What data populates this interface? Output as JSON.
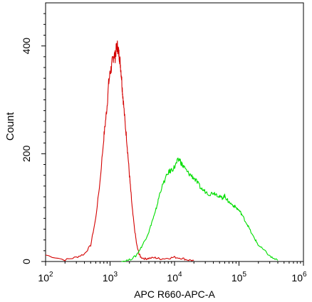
{
  "chart_data": {
    "type": "line",
    "title": "",
    "xlabel": "APC R660-APC-A",
    "ylabel": "Count",
    "xscale": "log",
    "xlim": [
      100,
      1000000
    ],
    "ylim": [
      0,
      480
    ],
    "grid": false,
    "legend": "none",
    "x_ticks": [
      {
        "value": 100,
        "base": "10",
        "exp": "2"
      },
      {
        "value": 1000,
        "base": "10",
        "exp": "3"
      },
      {
        "value": 10000,
        "base": "10",
        "exp": "4"
      },
      {
        "value": 100000,
        "base": "10",
        "exp": "5"
      },
      {
        "value": 1000000,
        "base": "10",
        "exp": "6"
      }
    ],
    "y_ticks": [
      {
        "value": 0,
        "label": "0"
      },
      {
        "value": 200,
        "label": "200"
      },
      {
        "value": 400,
        "label": "400"
      }
    ],
    "series": [
      {
        "color": "#d40000",
        "points": [
          [
            100,
            12
          ],
          [
            200,
            3
          ],
          [
            300,
            8
          ],
          [
            400,
            14
          ],
          [
            500,
            30
          ],
          [
            600,
            80
          ],
          [
            700,
            150
          ],
          [
            800,
            230
          ],
          [
            850,
            260
          ],
          [
            900,
            290
          ],
          [
            950,
            330
          ],
          [
            1000,
            350
          ],
          [
            1050,
            360
          ],
          [
            1100,
            375
          ],
          [
            1150,
            385
          ],
          [
            1200,
            380
          ],
          [
            1250,
            395
          ],
          [
            1300,
            400
          ],
          [
            1350,
            390
          ],
          [
            1400,
            380
          ],
          [
            1450,
            365
          ],
          [
            1500,
            345
          ],
          [
            1550,
            320
          ],
          [
            1600,
            300
          ],
          [
            1700,
            260
          ],
          [
            1800,
            230
          ],
          [
            1900,
            195
          ],
          [
            2000,
            160
          ],
          [
            2100,
            130
          ],
          [
            2200,
            100
          ],
          [
            2400,
            60
          ],
          [
            2600,
            30
          ],
          [
            2800,
            15
          ],
          [
            3000,
            8
          ],
          [
            3500,
            5
          ],
          [
            4000,
            6
          ],
          [
            5000,
            7
          ],
          [
            6000,
            5
          ],
          [
            8000,
            6
          ],
          [
            10000,
            8
          ],
          [
            13000,
            6
          ],
          [
            16000,
            3
          ],
          [
            20000,
            2
          ]
        ]
      },
      {
        "color": "#00dd00",
        "points": [
          [
            1500,
            0
          ],
          [
            2000,
            3
          ],
          [
            2500,
            10
          ],
          [
            3000,
            25
          ],
          [
            3500,
            40
          ],
          [
            4000,
            55
          ],
          [
            4500,
            75
          ],
          [
            5000,
            90
          ],
          [
            5500,
            110
          ],
          [
            6000,
            130
          ],
          [
            7000,
            150
          ],
          [
            8000,
            165
          ],
          [
            9000,
            170
          ],
          [
            10000,
            175
          ],
          [
            11000,
            185
          ],
          [
            12000,
            190
          ],
          [
            13000,
            180
          ],
          [
            14000,
            175
          ],
          [
            16000,
            165
          ],
          [
            18000,
            160
          ],
          [
            20000,
            155
          ],
          [
            23000,
            145
          ],
          [
            26000,
            135
          ],
          [
            30000,
            130
          ],
          [
            35000,
            125
          ],
          [
            40000,
            128
          ],
          [
            45000,
            125
          ],
          [
            50000,
            120
          ],
          [
            55000,
            118
          ],
          [
            60000,
            122
          ],
          [
            65000,
            115
          ],
          [
            70000,
            110
          ],
          [
            80000,
            105
          ],
          [
            90000,
            100
          ],
          [
            100000,
            95
          ],
          [
            110000,
            88
          ],
          [
            125000,
            75
          ],
          [
            140000,
            65
          ],
          [
            160000,
            50
          ],
          [
            180000,
            40
          ],
          [
            200000,
            30
          ],
          [
            250000,
            20
          ],
          [
            300000,
            10
          ],
          [
            350000,
            5
          ],
          [
            400000,
            2
          ]
        ]
      }
    ]
  }
}
